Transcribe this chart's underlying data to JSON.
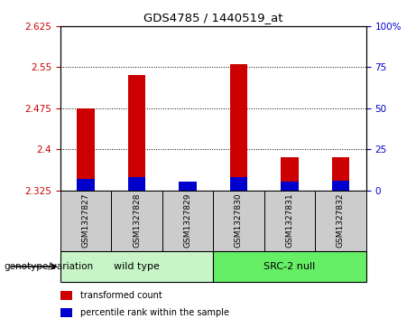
{
  "title": "GDS4785 / 1440519_at",
  "samples": [
    "GSM1327827",
    "GSM1327828",
    "GSM1327829",
    "GSM1327830",
    "GSM1327831",
    "GSM1327832"
  ],
  "transformed_counts": [
    2.475,
    2.535,
    2.335,
    2.555,
    2.385,
    2.385
  ],
  "percentile_ranks": [
    7,
    8,
    5,
    8,
    5,
    6
  ],
  "baseline": 2.325,
  "ylim_left": [
    2.325,
    2.625
  ],
  "ylim_right": [
    0,
    100
  ],
  "yticks_left": [
    2.325,
    2.4,
    2.475,
    2.55,
    2.625
  ],
  "yticks_right": [
    0,
    25,
    50,
    75,
    100
  ],
  "groups": [
    {
      "name": "wild type",
      "indices": [
        0,
        1,
        2
      ],
      "color": "#C8F5C8"
    },
    {
      "name": "SRC-2 null",
      "indices": [
        3,
        4,
        5
      ],
      "color": "#66EE66"
    }
  ],
  "group_label": "genotype/variation",
  "bar_color_red": "#CC0000",
  "bar_color_blue": "#0000CC",
  "sample_bg_color": "#CCCCCC",
  "plot_bg": "#FFFFFF",
  "bar_width": 0.35,
  "legend_items": [
    {
      "label": "transformed count",
      "color": "#CC0000"
    },
    {
      "label": "percentile rank within the sample",
      "color": "#0000CC"
    }
  ]
}
